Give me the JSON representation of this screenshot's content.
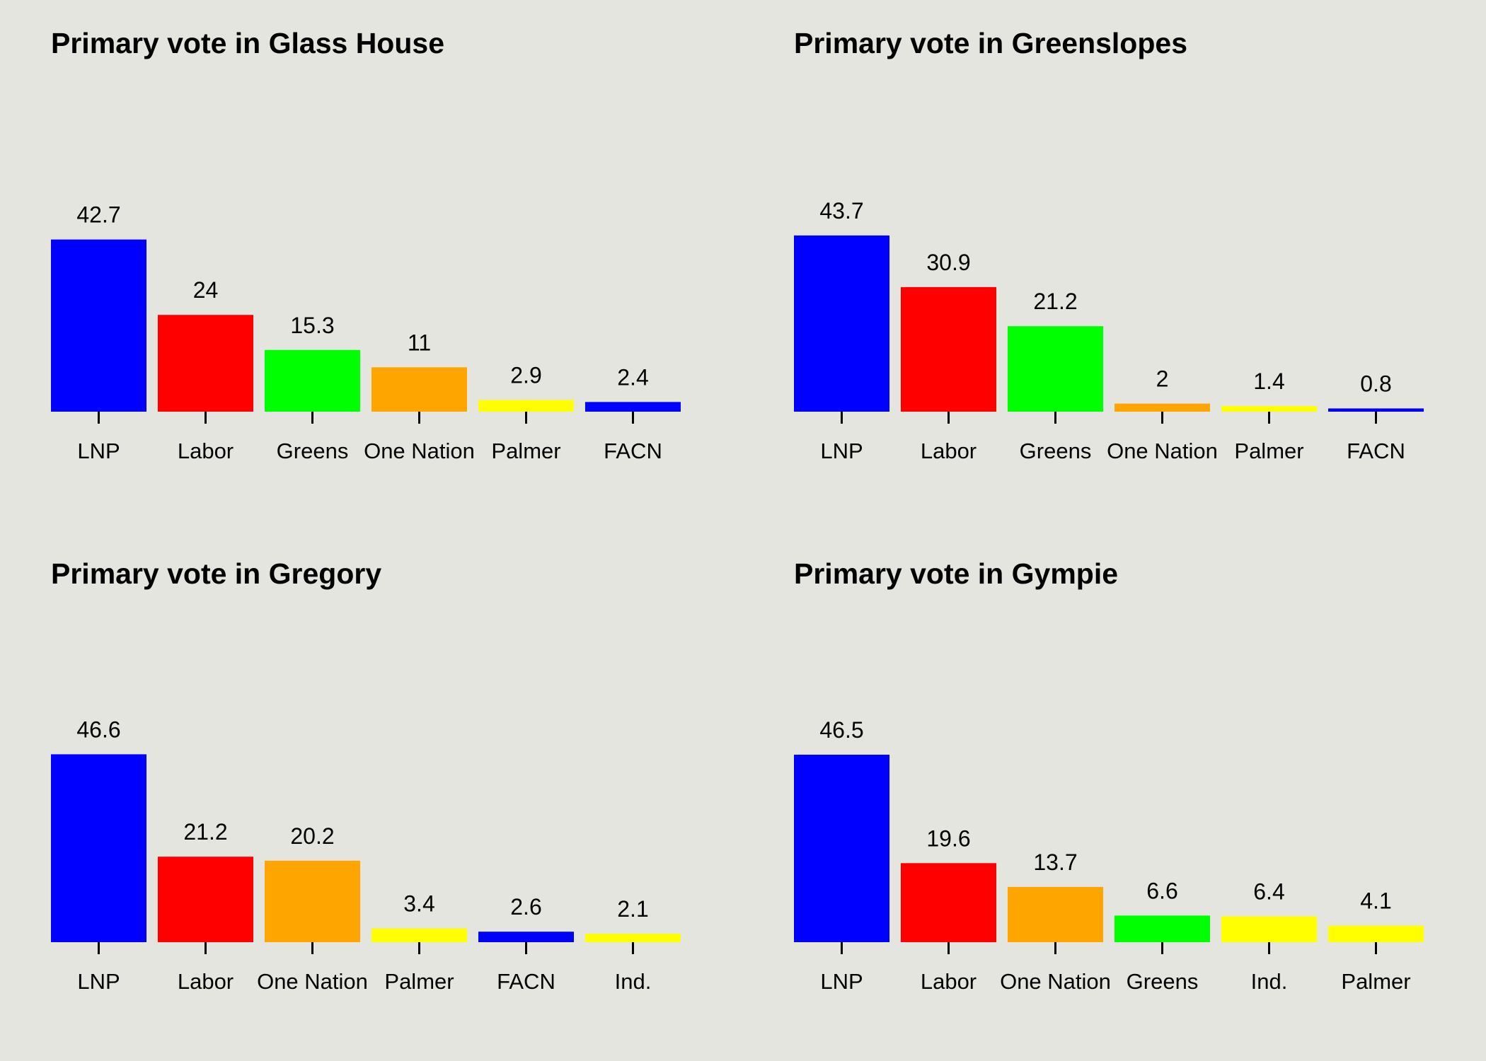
{
  "chart_data": [
    {
      "type": "bar",
      "title": "Primary vote in Glass House",
      "xlabel": "",
      "ylabel": "",
      "grid": false,
      "ylim": [
        0,
        60
      ],
      "categories": [
        "LNP",
        "Labor",
        "Greens",
        "One Nation",
        "Palmer",
        "FACN"
      ],
      "values": [
        42.7,
        24,
        15.3,
        11,
        2.9,
        2.4
      ],
      "labels": [
        "42.7",
        "24",
        "15.3",
        "11",
        "2.9",
        "2.4"
      ],
      "colors": [
        "#0000ff",
        "#ff0000",
        "#00ff00",
        "#ffa500",
        "#ffff00",
        "#0000ff"
      ]
    },
    {
      "type": "bar",
      "title": "Primary vote in Greenslopes",
      "xlabel": "",
      "ylabel": "",
      "grid": false,
      "ylim": [
        0,
        60
      ],
      "categories": [
        "LNP",
        "Labor",
        "Greens",
        "One Nation",
        "Palmer",
        "FACN"
      ],
      "values": [
        43.7,
        30.9,
        21.2,
        2,
        1.4,
        0.8
      ],
      "labels": [
        "43.7",
        "30.9",
        "21.2",
        "2",
        "1.4",
        "0.8"
      ],
      "colors": [
        "#0000ff",
        "#ff0000",
        "#00ff00",
        "#ffa500",
        "#ffff00",
        "#0000ff"
      ]
    },
    {
      "type": "bar",
      "title": "Primary vote in Gregory",
      "xlabel": "",
      "ylabel": "",
      "grid": false,
      "ylim": [
        0,
        60
      ],
      "categories": [
        "LNP",
        "Labor",
        "One Nation",
        "Palmer",
        "FACN",
        "Ind."
      ],
      "values": [
        46.6,
        21.2,
        20.2,
        3.4,
        2.6,
        2.1
      ],
      "labels": [
        "46.6",
        "21.2",
        "20.2",
        "3.4",
        "2.6",
        "2.1"
      ],
      "colors": [
        "#0000ff",
        "#ff0000",
        "#ffa500",
        "#ffff00",
        "#0000ff",
        "#ffff00"
      ]
    },
    {
      "type": "bar",
      "title": "Primary vote in Gympie",
      "xlabel": "",
      "ylabel": "",
      "grid": false,
      "ylim": [
        0,
        60
      ],
      "categories": [
        "LNP",
        "Labor",
        "One Nation",
        "Greens",
        "Ind.",
        "Palmer"
      ],
      "values": [
        46.5,
        19.6,
        13.7,
        6.6,
        6.4,
        4.1
      ],
      "labels": [
        "46.5",
        "19.6",
        "13.7",
        "6.6",
        "6.4",
        "4.1"
      ],
      "colors": [
        "#0000ff",
        "#ff0000",
        "#ffa500",
        "#00ff00",
        "#ffff00",
        "#ffff00"
      ]
    }
  ],
  "style": {
    "background": "#e5e5df",
    "tick_color": "#000000",
    "text_color": "#000000"
  }
}
